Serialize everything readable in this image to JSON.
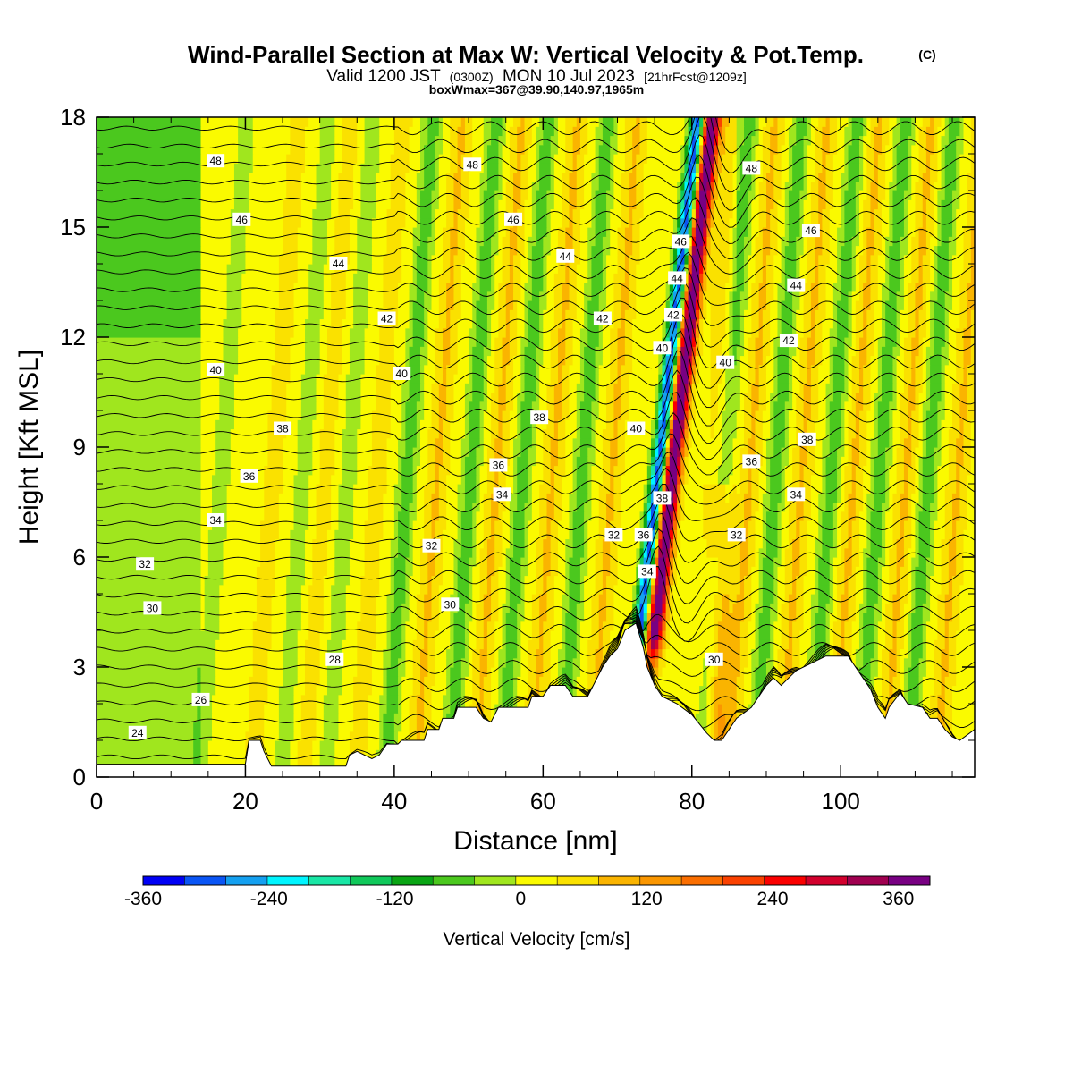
{
  "chart_data": {
    "type": "heatmap",
    "title": "Wind-Parallel Section at Max W: Vertical Velocity & Pot.Temp.",
    "title_mark": "(C)",
    "subtitle": {
      "valid": "Valid 1200 JST",
      "utc": "(0300Z)",
      "date": "MON 10 Jul 2023",
      "forecast": "[21hrFcst@1209z]"
    },
    "subtitle2": "boxWmax=367@39.90,140.97,1965m",
    "xlabel": "Distance [nm]",
    "ylabel": "Height [Kft MSL]",
    "xlim": [
      0,
      118
    ],
    "ylim": [
      0,
      18
    ],
    "x_ticks": [
      "0",
      "20",
      "40",
      "60",
      "80",
      "100"
    ],
    "y_ticks": [
      "0",
      "3",
      "6",
      "9",
      "12",
      "15",
      "18"
    ],
    "colorbar": {
      "title": "Vertical Velocity [cm/s]",
      "range": [
        -360,
        390
      ],
      "tick_labels": [
        "-360",
        "-240",
        "-120",
        "0",
        "120",
        "240",
        "360"
      ],
      "colors": [
        "#0000f5",
        "#0a55f5",
        "#14a0f0",
        "#00f5ff",
        "#19e6a5",
        "#10c85a",
        "#0aa514",
        "#4bc81e",
        "#a0e61e",
        "#fafa00",
        "#fae100",
        "#fab400",
        "#fa9600",
        "#fa6e00",
        "#fa4100",
        "#fa0000",
        "#d2002d",
        "#a00050",
        "#780082"
      ]
    },
    "terrain_kft": [
      [
        0,
        0.35
      ],
      [
        20,
        0.35
      ],
      [
        20.5,
        1.0
      ],
      [
        22,
        1.0
      ],
      [
        22.5,
        0.7
      ],
      [
        23.5,
        0.3
      ],
      [
        32,
        0.3
      ],
      [
        33.5,
        0.3
      ],
      [
        34,
        0.6
      ],
      [
        35,
        0.7
      ],
      [
        36,
        0.6
      ],
      [
        37,
        0.5
      ],
      [
        38,
        0.6
      ],
      [
        39,
        0.9
      ],
      [
        40.5,
        0.9
      ],
      [
        41,
        1.0
      ],
      [
        44,
        1.0
      ],
      [
        44.5,
        1.3
      ],
      [
        46,
        1.3
      ],
      [
        46.5,
        1.6
      ],
      [
        48,
        1.6
      ],
      [
        48.5,
        1.9
      ],
      [
        51,
        1.9
      ],
      [
        52,
        1.6
      ],
      [
        53,
        1.5
      ],
      [
        54,
        1.9
      ],
      [
        58,
        1.9
      ],
      [
        58.5,
        2.2
      ],
      [
        60,
        2.2
      ],
      [
        61,
        2.5
      ],
      [
        63,
        2.5
      ],
      [
        64,
        2.2
      ],
      [
        66,
        2.2
      ],
      [
        67,
        2.6
      ],
      [
        68,
        3.0
      ],
      [
        69,
        3.3
      ],
      [
        70,
        3.5
      ],
      [
        71,
        4.0
      ],
      [
        72.5,
        4.2
      ],
      [
        73.5,
        3.5
      ],
      [
        74,
        3.0
      ],
      [
        75,
        2.5
      ],
      [
        76,
        2.2
      ],
      [
        78,
        2.0
      ],
      [
        80,
        1.7
      ],
      [
        82,
        1.2
      ],
      [
        83,
        1.0
      ],
      [
        84,
        1.0
      ],
      [
        85,
        1.3
      ],
      [
        86,
        1.6
      ],
      [
        88,
        1.9
      ],
      [
        89,
        2.2
      ],
      [
        90,
        2.5
      ],
      [
        91,
        2.7
      ],
      [
        92,
        2.5
      ],
      [
        93,
        2.7
      ],
      [
        94,
        2.9
      ],
      [
        96,
        3.1
      ],
      [
        98,
        3.3
      ],
      [
        101,
        3.3
      ],
      [
        102,
        3.0
      ],
      [
        103,
        2.7
      ],
      [
        104,
        2.4
      ],
      [
        105,
        1.9
      ],
      [
        106,
        1.6
      ],
      [
        106.5,
        1.9
      ],
      [
        108,
        2.3
      ],
      [
        109,
        2.0
      ],
      [
        111,
        1.9
      ],
      [
        112,
        1.6
      ],
      [
        113,
        1.6
      ],
      [
        114,
        1.3
      ],
      [
        115,
        1.1
      ],
      [
        116,
        1.0
      ],
      [
        118,
        1.3
      ]
    ],
    "isentrope_labels": [
      {
        "x": 16,
        "y": 16.8,
        "text": "48"
      },
      {
        "x": 19.5,
        "y": 15.2,
        "text": "46"
      },
      {
        "x": 32.5,
        "y": 14.0,
        "text": "44"
      },
      {
        "x": 39,
        "y": 12.5,
        "text": "42"
      },
      {
        "x": 16,
        "y": 11.1,
        "text": "40"
      },
      {
        "x": 41,
        "y": 11.0,
        "text": "40"
      },
      {
        "x": 25,
        "y": 9.5,
        "text": "38"
      },
      {
        "x": 20.5,
        "y": 8.2,
        "text": "36"
      },
      {
        "x": 16,
        "y": 7.0,
        "text": "34"
      },
      {
        "x": 6.5,
        "y": 5.8,
        "text": "32"
      },
      {
        "x": 7.5,
        "y": 4.6,
        "text": "30"
      },
      {
        "x": 32,
        "y": 3.2,
        "text": "28"
      },
      {
        "x": 14,
        "y": 2.1,
        "text": "26"
      },
      {
        "x": 5.5,
        "y": 1.2,
        "text": "24"
      },
      {
        "x": 50.5,
        "y": 16.7,
        "text": "48"
      },
      {
        "x": 56,
        "y": 15.2,
        "text": "46"
      },
      {
        "x": 63,
        "y": 14.2,
        "text": "44"
      },
      {
        "x": 68,
        "y": 12.5,
        "text": "42"
      },
      {
        "x": 59.5,
        "y": 9.8,
        "text": "38"
      },
      {
        "x": 54,
        "y": 8.5,
        "text": "36"
      },
      {
        "x": 54.5,
        "y": 7.7,
        "text": "34"
      },
      {
        "x": 45,
        "y": 6.3,
        "text": "32"
      },
      {
        "x": 47.5,
        "y": 4.7,
        "text": "30"
      },
      {
        "x": 69.5,
        "y": 6.6,
        "text": "32"
      },
      {
        "x": 72.5,
        "y": 9.5,
        "text": "40"
      },
      {
        "x": 73.5,
        "y": 6.6,
        "text": "36"
      },
      {
        "x": 74,
        "y": 5.6,
        "text": "34"
      },
      {
        "x": 76,
        "y": 7.6,
        "text": "38"
      },
      {
        "x": 76,
        "y": 11.7,
        "text": "40"
      },
      {
        "x": 77.5,
        "y": 12.6,
        "text": "42"
      },
      {
        "x": 78,
        "y": 13.6,
        "text": "44"
      },
      {
        "x": 78.5,
        "y": 14.6,
        "text": "46"
      },
      {
        "x": 84.5,
        "y": 11.3,
        "text": "40"
      },
      {
        "x": 88,
        "y": 16.6,
        "text": "48"
      },
      {
        "x": 96,
        "y": 14.9,
        "text": "46"
      },
      {
        "x": 94,
        "y": 13.4,
        "text": "44"
      },
      {
        "x": 93,
        "y": 11.9,
        "text": "42"
      },
      {
        "x": 95.5,
        "y": 9.2,
        "text": "38"
      },
      {
        "x": 88,
        "y": 8.6,
        "text": "36"
      },
      {
        "x": 94,
        "y": 7.7,
        "text": "34"
      },
      {
        "x": 86,
        "y": 6.6,
        "text": "32"
      },
      {
        "x": 83,
        "y": 3.2,
        "text": "30"
      }
    ]
  }
}
